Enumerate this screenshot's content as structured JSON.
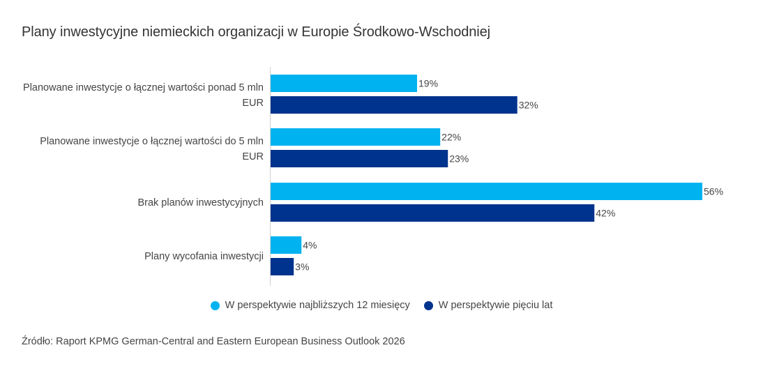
{
  "chart_data": {
    "type": "bar",
    "orientation": "horizontal",
    "title": "Plany inwestycyjne niemieckich organizacji w Europie Środkowo-Wschodniej",
    "categories": [
      "Planowane inwestycje o łącznej wartości ponad 5 mln EUR",
      "Planowane inwestycje o łącznej wartości do 5 mln EUR",
      "Brak planów inwestycyjnych",
      "Plany wycofania inwestycji"
    ],
    "series": [
      {
        "name": "W perspektywie najbliższych 12 miesięcy",
        "color": "#00b3f0",
        "values": [
          19,
          22,
          56,
          4
        ]
      },
      {
        "name": "W perspektywie pięciu lat",
        "color": "#00338d",
        "values": [
          32,
          23,
          42,
          3
        ]
      }
    ],
    "value_suffix": "%",
    "xlim": [
      0,
      56
    ],
    "grid": false,
    "legend": "bottom"
  },
  "source": "Źródło: Raport KPMG German-Central and Eastern European Business Outlook 2026"
}
